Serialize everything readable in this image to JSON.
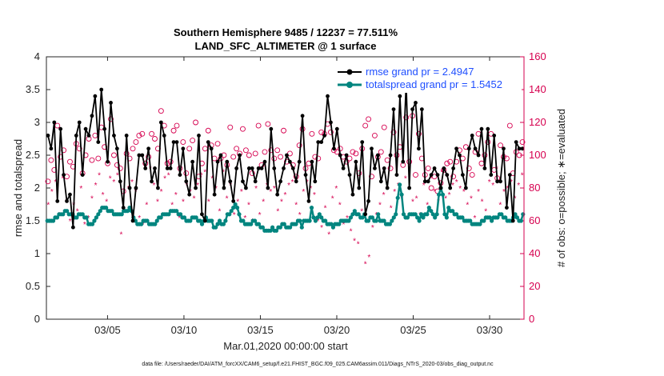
{
  "chart_data": {
    "type": "line",
    "title": "Southern Hemisphere 9485 / 12237 = 77.511%",
    "subtitle": "LAND_SFC_ALTIMETER @ 1 surface",
    "xlabel": "Mar.01,2020 00:00:00 start",
    "ylabel": "rmse and totalspread",
    "y2label": "# of obs: o=possible; ∗=evaluated",
    "footer": "data file: /Users/raeder/DAI/ATM_forcXX/CAM6_setup/f.e21.FHIST_BGC.f09_025.CAM6assim.011/Diags_NTrS_2020-03/obs_diag_output.nc",
    "xlim": [
      1,
      32.25
    ],
    "ylim": [
      0,
      4
    ],
    "y2lim": [
      0,
      160
    ],
    "xticks": [
      5,
      10,
      15,
      20,
      25,
      30
    ],
    "xtick_labels": [
      "03/05",
      "03/10",
      "03/15",
      "03/20",
      "03/25",
      "03/30"
    ],
    "yticks": [
      0,
      0.5,
      1,
      1.5,
      2,
      2.5,
      3,
      3.5,
      4
    ],
    "ytick_labels": [
      "0",
      "0.5",
      "1",
      "1.5",
      "2",
      "2.5",
      "3",
      "3.5",
      "4"
    ],
    "y2ticks": [
      0,
      20,
      40,
      60,
      80,
      100,
      120,
      140,
      160
    ],
    "y2tick_labels": [
      "0",
      "20",
      "40",
      "60",
      "80",
      "100",
      "120",
      "140",
      "160"
    ],
    "legend_position": "top-right",
    "colors": {
      "rmse": "#000000",
      "spread": "#00857f",
      "obs": "#d6004f"
    },
    "series": [
      {
        "name": "rmse grand pr = 2.4947",
        "axis": "left",
        "values": [
          2.8,
          2.6,
          3.0,
          1.8,
          2.9,
          2.2,
          1.8,
          1.9,
          1.4,
          2.8,
          3.0,
          2.2,
          2.9,
          2.8,
          3.1,
          3.4,
          2.7,
          3.5,
          2.9,
          2.4,
          3.3,
          2.8,
          2.6,
          2.1,
          1.7,
          2.8,
          2.0,
          1.5,
          2.0,
          2.5,
          2.5,
          2.3,
          2.6,
          2.1,
          2.3,
          2.0,
          3.0,
          2.8,
          2.3,
          2.3,
          2.7,
          2.7,
          2.2,
          2.6,
          2.1,
          1.9,
          2.4,
          2.0,
          2.8,
          1.6,
          1.5,
          2.7,
          2.6,
          1.9,
          2.4,
          2.5,
          2.0,
          2.4,
          2.1,
          1.8,
          2.3,
          2.5,
          2.1,
          2.0,
          2.3,
          2.3,
          2.1,
          2.3,
          2.3,
          2.4,
          2.0,
          2.9,
          2.3,
          1.9,
          2.1,
          2.3,
          2.5,
          2.4,
          2.3,
          2.1,
          2.4,
          3.1,
          2.2,
          1.8,
          2.4,
          2.1,
          2.7,
          2.7,
          2.8,
          3.4,
          3.0,
          2.6,
          2.9,
          2.5,
          2.3,
          2.5,
          2.2,
          1.9,
          2.4,
          2.0,
          2.7,
          1.6,
          1.8,
          2.6,
          2.3,
          2.5,
          2.1,
          2.3,
          2.0,
          2.5,
          3.2,
          2.2,
          3.4,
          2.4,
          3.6,
          2.0,
          3.2,
          3.3,
          2.6,
          3.2,
          2.1,
          2.1,
          2.2,
          2.3,
          2.2,
          2.0,
          2.3,
          2.2,
          2.0,
          2.3,
          2.6,
          2.5,
          2.2,
          2.0,
          2.6,
          2.8,
          2.6,
          2.5,
          2.9,
          2.3,
          2.9,
          2.2,
          2.8,
          2.1,
          2.1,
          2.6,
          1.7,
          2.2,
          1.5,
          2.7,
          2.6,
          2.6
        ]
      },
      {
        "name": "totalspread grand pr = 1.5452",
        "axis": "left",
        "values": [
          1.5,
          1.5,
          1.5,
          1.5,
          1.55,
          1.55,
          1.6,
          1.6,
          1.6,
          1.65,
          1.65,
          1.6,
          1.6,
          1.6,
          1.55,
          1.55,
          1.6,
          1.6,
          1.6,
          1.55,
          1.55,
          1.45,
          1.45,
          1.45,
          1.5,
          1.55,
          1.6,
          1.65,
          1.7,
          1.7,
          1.7,
          1.65,
          1.65,
          1.65,
          1.6,
          1.6,
          1.6,
          1.6,
          1.6,
          1.65,
          1.65,
          1.65,
          1.7,
          1.65,
          1.55,
          1.5,
          1.45,
          1.45,
          1.45,
          1.5,
          1.5,
          1.5,
          1.45,
          1.45,
          1.45,
          1.45,
          1.5,
          1.55,
          1.55,
          1.6,
          1.6,
          1.6,
          1.6,
          1.65,
          1.65,
          1.65,
          1.65,
          1.6,
          1.6,
          1.55,
          1.55,
          1.5,
          1.5,
          1.5,
          1.55,
          1.55,
          1.55,
          1.5,
          1.5,
          1.45,
          1.5,
          1.55,
          1.5,
          1.5,
          1.5,
          1.4,
          1.4,
          1.45,
          1.5,
          1.45,
          1.45,
          1.5,
          1.6,
          1.6,
          1.65,
          1.7,
          1.75,
          1.7,
          1.6,
          1.5,
          1.5,
          1.45,
          1.45,
          1.45,
          1.45,
          1.5,
          1.5,
          1.45,
          1.45,
          1.4,
          1.4,
          1.35,
          1.35,
          1.35,
          1.35,
          1.4,
          1.35,
          1.35,
          1.4,
          1.4,
          1.45,
          1.45,
          1.4,
          1.4,
          1.4,
          1.45,
          1.45,
          1.45,
          1.5,
          1.5,
          1.4,
          1.5,
          1.5,
          1.5,
          1.5,
          1.7,
          1.55,
          1.5,
          1.55,
          1.6,
          1.55,
          1.5,
          1.5,
          1.45,
          1.45,
          1.45,
          1.4,
          1.45,
          1.45,
          1.45,
          1.5,
          1.5,
          1.5,
          1.5,
          1.5,
          1.55,
          1.6,
          1.65,
          1.6,
          1.6,
          1.55,
          1.55,
          1.6,
          1.5,
          1.5,
          1.55,
          1.55,
          1.5,
          1.5,
          1.6,
          1.5,
          1.5,
          1.5,
          1.45,
          1.45,
          1.45,
          1.5,
          1.55,
          1.6,
          1.85,
          2.05,
          1.9,
          1.6,
          1.55,
          1.55,
          1.6,
          1.6,
          1.6,
          1.6,
          1.55,
          1.5,
          1.6,
          1.55,
          1.6,
          1.6,
          1.7,
          1.65,
          1.6,
          1.55,
          1.6,
          1.9,
          2.0,
          1.9,
          1.6,
          1.55,
          1.7,
          1.65,
          1.65,
          1.6,
          1.6,
          1.55,
          1.55,
          1.55,
          1.5,
          1.5,
          1.5,
          1.5,
          1.45,
          1.45,
          1.45,
          1.45,
          1.45,
          1.5,
          1.5,
          1.55,
          1.55,
          1.55,
          1.5,
          1.55,
          1.55,
          1.55,
          1.6,
          1.6,
          1.55,
          1.55,
          1.5,
          1.5,
          1.5,
          1.55,
          1.6,
          1.55,
          1.5,
          1.5,
          1.6
        ]
      },
      {
        "name": "# of obs possible",
        "axis": "right",
        "values": [
          84,
          97,
          91,
          118,
          99,
          103,
          87,
          96,
          93,
          107,
          104,
          89,
          100,
          110,
          97,
          112,
          98,
          117,
          105,
          95,
          122,
          100,
          94,
          92,
          78,
          101,
          98,
          104,
          108,
          112,
          113,
          95,
          99,
          113,
          110,
          104,
          127,
          118,
          95,
          96,
          115,
          118,
          92,
          108,
          89,
          104,
          109,
          120,
          87,
          95,
          104,
          115,
          106,
          98,
          107,
          98,
          100,
          94,
          117,
          99,
          104,
          101,
          116,
          103,
          100,
          89,
          101,
          118,
          94,
          102,
          119,
          103,
          98,
          103,
          99,
          115,
          96,
          101,
          94,
          87,
          106,
          116,
          92,
          95,
          113,
          99,
          98,
          114,
          113,
          119,
          114,
          103,
          102,
          104,
          99,
          96,
          98,
          102,
          101,
          89,
          104,
          118,
          122,
          87,
          112,
          99,
          102,
          117,
          97,
          92,
          114,
          100,
          105,
          94,
          123,
          96,
          124,
          88,
          113,
          98,
          88,
          92,
          80,
          87,
          78,
          83,
          91,
          95,
          96,
          87,
          96,
          103,
          98,
          105,
          92,
          88,
          102,
          113,
          95,
          100,
          108,
          113,
          91,
          86,
          106,
          99,
          98,
          118,
          89,
          102,
          100,
          108
        ]
      },
      {
        "name": "# of obs evaluated",
        "axis": "right",
        "values": [
          70,
          78,
          84,
          64,
          86,
          72,
          60,
          70,
          66,
          80,
          58,
          62,
          74,
          82,
          88,
          76,
          72,
          86,
          84,
          88,
          52,
          66,
          80,
          84,
          78,
          62,
          58,
          70,
          92,
          82,
          72,
          78,
          86,
          88,
          70,
          76,
          62,
          72,
          82,
          78,
          74,
          82,
          88,
          90,
          72,
          86,
          80,
          66,
          90,
          74,
          82,
          64,
          72,
          78,
          62,
          70,
          60,
          80,
          64,
          72,
          82,
          78,
          80,
          66,
          72,
          76,
          82,
          84,
          70,
          64,
          78,
          84,
          80,
          76,
          60,
          56,
          68,
          52,
          74,
          80,
          70,
          58,
          62,
          54,
          48,
          46,
          66,
          34,
          38,
          56,
          64,
          70,
          76,
          80,
          68,
          78,
          82,
          74,
          86,
          80,
          72,
          74,
          64,
          82,
          70,
          86,
          78,
          72,
          90,
          74,
          76,
          82,
          84,
          80,
          78,
          70,
          74,
          62,
          78,
          72,
          66,
          84,
          82,
          92,
          70,
          78,
          80,
          84,
          74,
          82,
          88
        ]
      }
    ]
  }
}
